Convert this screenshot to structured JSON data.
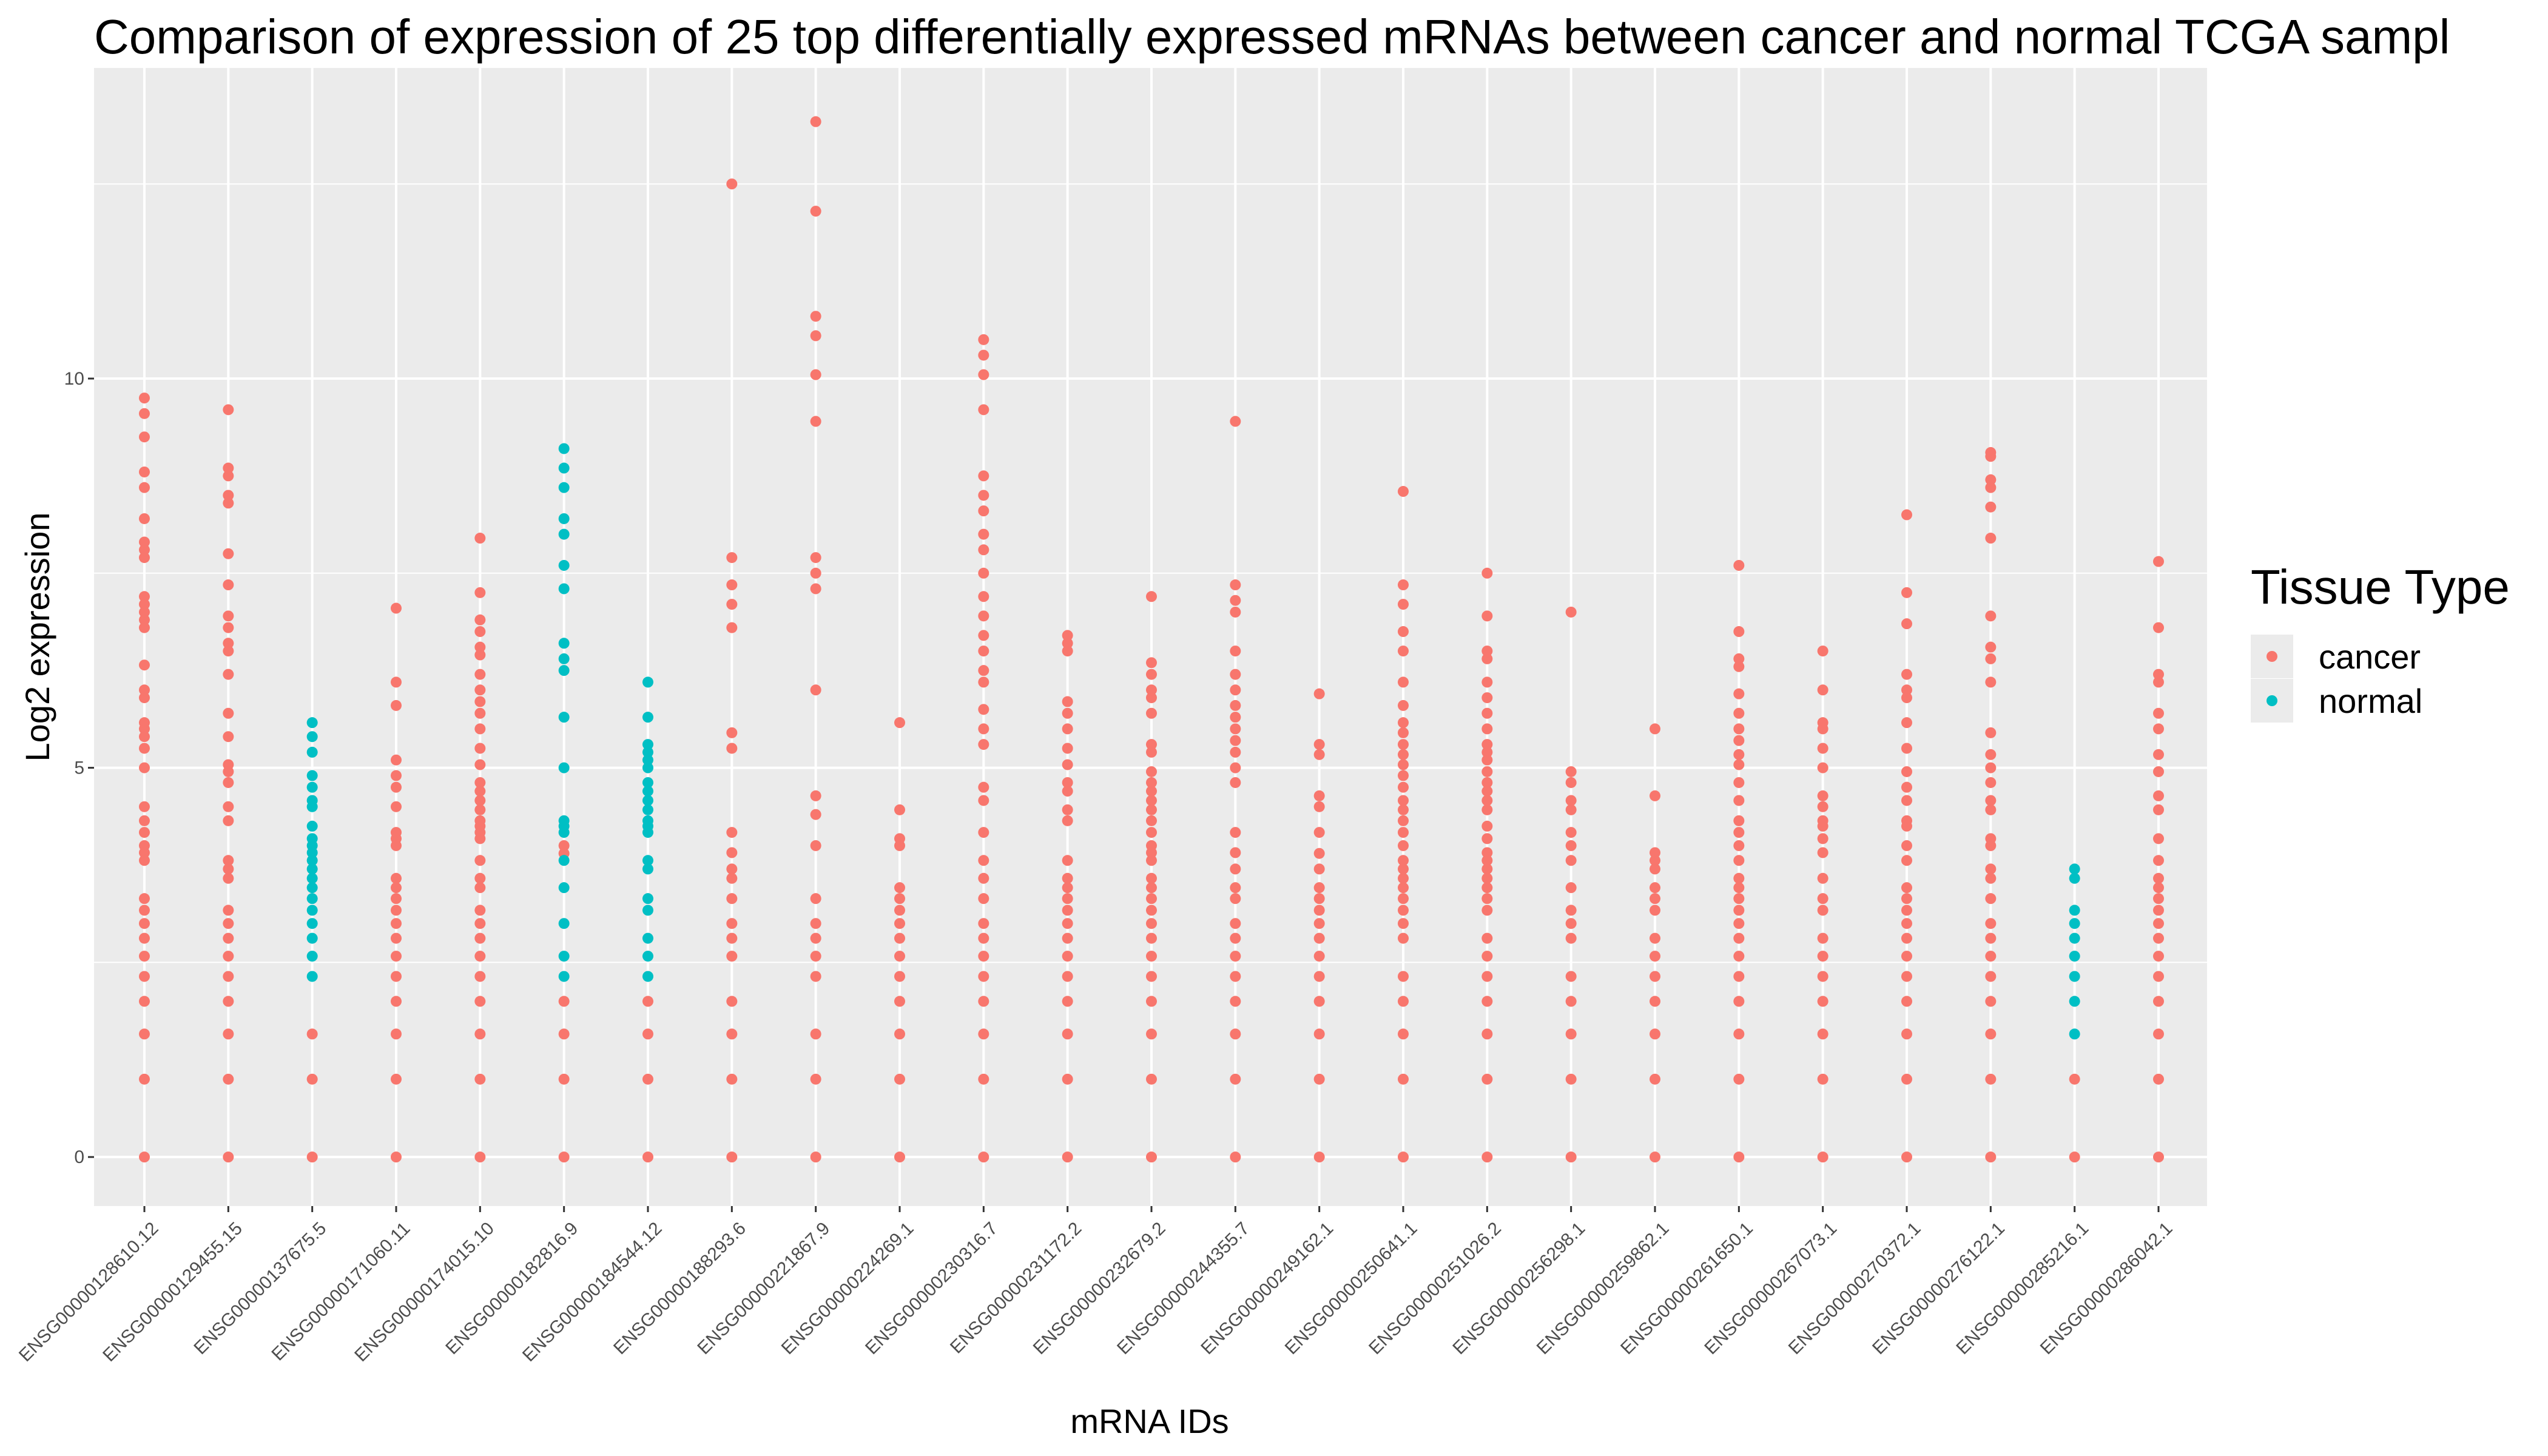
{
  "chart_data": {
    "type": "strip",
    "title": "Comparison of expression of 25 top differentially expressed mRNAs between cancer and normal TCGA sampl",
    "x_label": "mRNA IDs",
    "y_label": "Log2 expression",
    "legend_title": "Tissue Type",
    "legend_position": "right",
    "grid": true,
    "categories": [
      "ENSG00000128610.12",
      "ENSG00000129455.15",
      "ENSG00000137675.5",
      "ENSG00000171060.11",
      "ENSG00000174015.10",
      "ENSG00000182816.9",
      "ENSG00000184544.12",
      "ENSG00000188293.6",
      "ENSG00000221867.9",
      "ENSG00000224269.1",
      "ENSG00000230316.7",
      "ENSG00000231172.2",
      "ENSG00000232679.2",
      "ENSG00000244355.7",
      "ENSG00000249162.1",
      "ENSG00000250641.1",
      "ENSG00000251026.2",
      "ENSG00000256298.1",
      "ENSG00000259862.1",
      "ENSG00000261650.1",
      "ENSG00000267073.1",
      "ENSG00000270372.1",
      "ENSG00000276122.1",
      "ENSG00000285216.1",
      "ENSG00000286042.1"
    ],
    "ylim": [
      -0.63,
      13.99
    ],
    "yticks": [
      0,
      5,
      10
    ],
    "series": [
      {
        "name": "cancer",
        "color": "#F8766D",
        "values": [
          [
            0,
            1,
            1.58,
            2,
            2.32,
            2.58,
            2.81,
            3,
            3.17,
            3.32,
            3.81,
            3.91,
            4,
            4.17,
            4.32,
            4.5,
            5,
            5.25,
            5.4,
            5.5,
            5.58,
            5.9,
            6,
            6.32,
            6.8,
            6.9,
            7,
            7.1,
            7.2,
            7.7,
            7.8,
            7.9,
            8.2,
            8.6,
            8.8,
            9.25,
            9.55,
            9.75
          ],
          [
            0,
            1,
            1.58,
            2,
            2.32,
            2.58,
            2.81,
            3,
            3.17,
            3.58,
            3.7,
            3.81,
            4.32,
            4.5,
            4.81,
            4.95,
            5.04,
            5.4,
            5.7,
            6.2,
            6.5,
            6.6,
            6.8,
            6.95,
            7.35,
            7.75,
            8.4,
            8.5,
            8.75,
            8.85,
            9.6
          ],
          [
            0,
            1,
            1.58
          ],
          [
            0,
            1,
            1.58,
            2,
            2.32,
            2.58,
            2.81,
            3,
            3.17,
            3.32,
            3.46,
            3.58,
            4,
            4.09,
            4.17,
            4.5,
            4.75,
            4.9,
            5.1,
            5.8,
            6.1,
            7.05
          ],
          [
            0,
            1,
            1.58,
            2,
            2.32,
            2.58,
            2.81,
            3,
            3.17,
            3.46,
            3.58,
            3.81,
            4.09,
            4.17,
            4.25,
            4.32,
            4.46,
            4.58,
            4.7,
            4.81,
            5.04,
            5.25,
            5.5,
            5.7,
            5.85,
            6,
            6.2,
            6.45,
            6.55,
            6.75,
            6.9,
            7.25,
            7.95
          ],
          [
            0,
            1,
            1.58,
            2,
            3.9,
            4
          ],
          [
            0,
            1,
            1.58,
            2
          ],
          [
            0,
            1,
            1.58,
            2,
            2.58,
            2.81,
            3,
            3.32,
            3.58,
            3.7,
            3.91,
            4.17,
            5.25,
            5.45,
            6.8,
            7.1,
            7.35,
            7.7,
            12.5
          ],
          [
            0,
            1,
            1.58,
            2.32,
            2.58,
            2.81,
            3,
            3.32,
            4,
            4.4,
            4.64,
            6,
            7.3,
            7.5,
            7.7,
            9.45,
            10.05,
            10.55,
            10.8,
            12.15,
            13.3
          ],
          [
            0,
            1,
            1.58,
            2,
            2.32,
            2.58,
            2.81,
            3,
            3.17,
            3.32,
            3.46,
            4,
            4.09,
            4.46,
            5.58
          ],
          [
            0,
            1,
            1.58,
            2,
            2.32,
            2.58,
            2.81,
            3,
            3.32,
            3.58,
            3.81,
            4.17,
            4.58,
            4.75,
            5.3,
            5.5,
            5.75,
            6.1,
            6.25,
            6.5,
            6.7,
            6.95,
            7.2,
            7.5,
            7.8,
            8,
            8.3,
            8.5,
            8.75,
            9.6,
            10.05,
            10.3,
            10.5
          ],
          [
            0,
            1,
            1.58,
            2,
            2.32,
            2.58,
            2.81,
            3,
            3.17,
            3.32,
            3.46,
            3.58,
            3.81,
            4.32,
            4.46,
            4.7,
            4.81,
            5.04,
            5.25,
            5.5,
            5.7,
            5.85,
            6.5,
            6.6,
            6.7
          ],
          [
            0,
            1,
            1.58,
            2,
            2.32,
            2.58,
            2.81,
            3,
            3.17,
            3.32,
            3.46,
            3.58,
            3.81,
            3.91,
            4,
            4.17,
            4.32,
            4.46,
            4.58,
            4.7,
            4.81,
            4.95,
            5.2,
            5.3,
            5.7,
            5.9,
            6,
            6.2,
            6.35,
            7.2
          ],
          [
            0,
            1,
            1.58,
            2,
            2.32,
            2.58,
            2.81,
            3,
            3.32,
            3.46,
            3.7,
            3.91,
            4.17,
            4.81,
            5,
            5.2,
            5.35,
            5.5,
            5.65,
            5.8,
            6,
            6.2,
            6.5,
            7,
            7.15,
            7.35,
            9.45
          ],
          [
            0,
            1,
            1.58,
            2,
            2.32,
            2.58,
            2.81,
            3,
            3.17,
            3.32,
            3.46,
            3.7,
            3.9,
            4.17,
            4.5,
            4.64,
            5.17,
            5.3,
            5.95
          ],
          [
            0,
            1,
            1.58,
            2,
            2.32,
            2.81,
            3,
            3.17,
            3.32,
            3.46,
            3.58,
            3.7,
            3.81,
            4,
            4.17,
            4.32,
            4.46,
            4.58,
            4.75,
            4.9,
            5.04,
            5.17,
            5.3,
            5.45,
            5.58,
            5.8,
            6.1,
            6.5,
            6.75,
            7.1,
            7.35,
            8.55
          ],
          [
            0,
            1,
            1.58,
            2,
            2.32,
            2.58,
            2.81,
            3.17,
            3.32,
            3.46,
            3.58,
            3.7,
            3.81,
            3.91,
            4.09,
            4.25,
            4.46,
            4.58,
            4.7,
            4.81,
            4.95,
            5.1,
            5.2,
            5.3,
            5.5,
            5.7,
            5.9,
            6.1,
            6.4,
            6.5,
            6.95,
            7.5
          ],
          [
            0,
            1,
            1.58,
            2,
            2.32,
            2.81,
            3,
            3.17,
            3.46,
            3.81,
            4,
            4.17,
            4.46,
            4.58,
            4.81,
            4.95,
            7
          ],
          [
            0,
            1,
            1.58,
            2,
            2.32,
            2.58,
            2.81,
            3.17,
            3.32,
            3.46,
            3.7,
            3.81,
            3.91,
            4.64,
            5.5
          ],
          [
            0,
            1,
            1.58,
            2,
            2.32,
            2.58,
            2.81,
            3,
            3.17,
            3.32,
            3.46,
            3.58,
            3.81,
            4,
            4.17,
            4.32,
            4.58,
            4.81,
            5.04,
            5.17,
            5.35,
            5.5,
            5.7,
            5.95,
            6.3,
            6.4,
            6.75,
            7.6
          ],
          [
            0,
            1,
            1.58,
            2,
            2.32,
            2.58,
            2.81,
            3.17,
            3.32,
            3.58,
            3.91,
            4.09,
            4.25,
            4.32,
            4.5,
            4.64,
            5,
            5.25,
            5.5,
            5.58,
            6,
            6.5
          ],
          [
            0,
            1,
            1.58,
            2,
            2.32,
            2.58,
            2.81,
            3,
            3.17,
            3.32,
            3.46,
            3.81,
            4,
            4.25,
            4.32,
            4.58,
            4.75,
            4.95,
            5.25,
            5.58,
            5.9,
            6,
            6.2,
            6.85,
            7.25,
            8.25
          ],
          [
            0,
            1,
            1.58,
            2,
            2.32,
            2.58,
            2.81,
            3,
            3.32,
            3.58,
            3.7,
            4,
            4.09,
            4.46,
            4.58,
            4.81,
            5,
            5.17,
            5.45,
            6.1,
            6.4,
            6.55,
            6.95,
            7.95,
            8.35,
            8.6,
            8.7,
            9,
            9.05
          ],
          [
            0,
            1
          ],
          [
            0,
            1,
            1.58,
            2,
            2.32,
            2.58,
            2.81,
            3,
            3.17,
            3.32,
            3.46,
            3.58,
            3.81,
            4.09,
            4.46,
            4.64,
            4.95,
            5.17,
            5.5,
            5.7,
            6.1,
            6.2,
            6.8,
            7.65
          ]
        ]
      },
      {
        "name": "normal",
        "color": "#00BFC4",
        "values": [
          [],
          [],
          [
            2.32,
            2.58,
            2.81,
            3,
            3.17,
            3.32,
            3.46,
            3.58,
            3.7,
            3.81,
            3.91,
            4,
            4.09,
            4.25,
            4.5,
            4.58,
            4.75,
            4.9,
            5.2,
            5.4,
            5.58
          ],
          [],
          [],
          [
            2.32,
            2.58,
            3,
            3.46,
            3.81,
            4.17,
            4.25,
            4.32,
            5,
            5.65,
            6.25,
            6.4,
            6.6,
            7.3,
            7.6,
            8,
            8.2,
            8.6,
            8.85,
            9.1
          ],
          [
            2.32,
            2.58,
            2.81,
            3.17,
            3.32,
            3.7,
            3.81,
            4.17,
            4.25,
            4.32,
            4.46,
            4.58,
            4.7,
            4.81,
            5,
            5.1,
            5.2,
            5.3,
            5.65,
            6.1
          ],
          [],
          [],
          [],
          [],
          [],
          [],
          [],
          [],
          [],
          [],
          [],
          [],
          [],
          [],
          [],
          [],
          [
            1.58,
            2,
            2.32,
            2.58,
            2.81,
            3,
            3.17,
            3.58,
            3.7
          ],
          []
        ]
      }
    ]
  }
}
